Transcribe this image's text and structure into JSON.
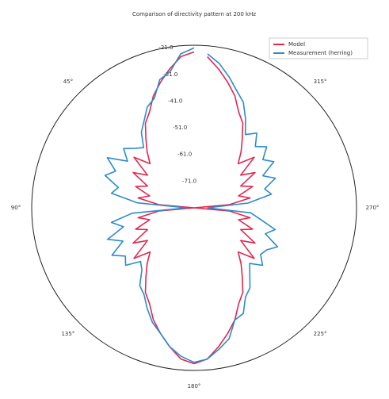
{
  "chart_data": {
    "type": "polar",
    "title": "Comparison of directivity pattern at 200 kHz",
    "x": [
      0,
      5,
      10,
      15,
      20,
      25,
      30,
      35,
      40,
      45,
      50,
      55,
      60,
      65,
      70,
      75,
      80,
      85,
      90,
      95,
      100,
      105,
      110,
      115,
      120,
      125,
      130,
      135,
      140,
      145,
      150,
      155,
      160,
      165,
      170,
      175,
      180,
      185,
      190,
      195,
      200,
      205,
      210,
      215,
      220,
      225,
      230,
      235,
      240,
      245,
      250,
      255,
      260,
      265,
      270,
      275,
      280,
      285,
      290,
      295,
      300,
      305,
      310,
      315,
      320,
      325,
      330,
      335,
      340,
      345,
      350,
      355
    ],
    "series": [
      {
        "name": "Model",
        "color": "#e0284f",
        "values": [
          -23.5,
          -25,
          -29,
          -33,
          -37,
          -42,
          -45,
          -50,
          -54,
          -58,
          -52,
          -60,
          -55,
          -62,
          -58,
          -64,
          -60,
          -68,
          -81,
          -68,
          -60,
          -64,
          -58,
          -62,
          -55,
          -60,
          -52,
          -58,
          -54,
          -50,
          -45,
          -42,
          -37,
          -33,
          -29,
          -25,
          -23.5,
          -25,
          -29,
          -33,
          -37,
          -42,
          -45,
          -50,
          -54,
          -58,
          -52,
          -60,
          -55,
          -62,
          -58,
          -64,
          -60,
          -68,
          -81,
          -68,
          -60,
          -64,
          -58,
          -62,
          -55,
          -60,
          -52,
          -58,
          -54,
          -50,
          -45,
          -42,
          -37,
          -33,
          -29,
          -25
        ]
      },
      {
        "name": "Measurement (herring)",
        "color": "#2b8ccc",
        "values": [
          -22,
          -24,
          -30,
          -32,
          -38,
          -40,
          -44,
          -47,
          -52,
          -50,
          -47,
          -51,
          -44,
          -49,
          -46,
          -52,
          -50,
          -60,
          -78,
          -58,
          -50,
          -54,
          -47,
          -52,
          -46,
          -50,
          -48,
          -53,
          -51,
          -46,
          -44,
          -40,
          -36,
          -33,
          -29,
          -26,
          -24,
          -25,
          -28,
          -31,
          -37,
          -38,
          -43,
          -45,
          -49,
          -52,
          -48,
          -51,
          -50,
          -47,
          -53,
          -50,
          -56,
          -60,
          -76,
          -61,
          -52,
          -54,
          -49,
          -53,
          -47,
          -50,
          -46,
          -49,
          -45,
          -48,
          -43,
          -38,
          -35,
          -31,
          -27,
          -24
        ]
      }
    ],
    "ylim": [
      -81,
      -21
    ],
    "yticks": [
      {
        "value": -71,
        "label": "-71.0"
      },
      {
        "value": -61,
        "label": "-61.0"
      },
      {
        "value": -51,
        "label": "-51.0"
      },
      {
        "value": -41,
        "label": "-41.0"
      },
      {
        "value": -31,
        "label": "-31.0"
      },
      {
        "value": -21,
        "label": "-21.0"
      }
    ],
    "xticks": [
      {
        "value": 45,
        "label": "45°"
      },
      {
        "value": 90,
        "label": "90°"
      },
      {
        "value": 135,
        "label": "135°"
      },
      {
        "value": 180,
        "label": "180°"
      },
      {
        "value": 225,
        "label": "225°"
      },
      {
        "value": 270,
        "label": "270°"
      },
      {
        "value": 315,
        "label": "315°"
      }
    ],
    "grid": false,
    "legend": "upper right"
  }
}
